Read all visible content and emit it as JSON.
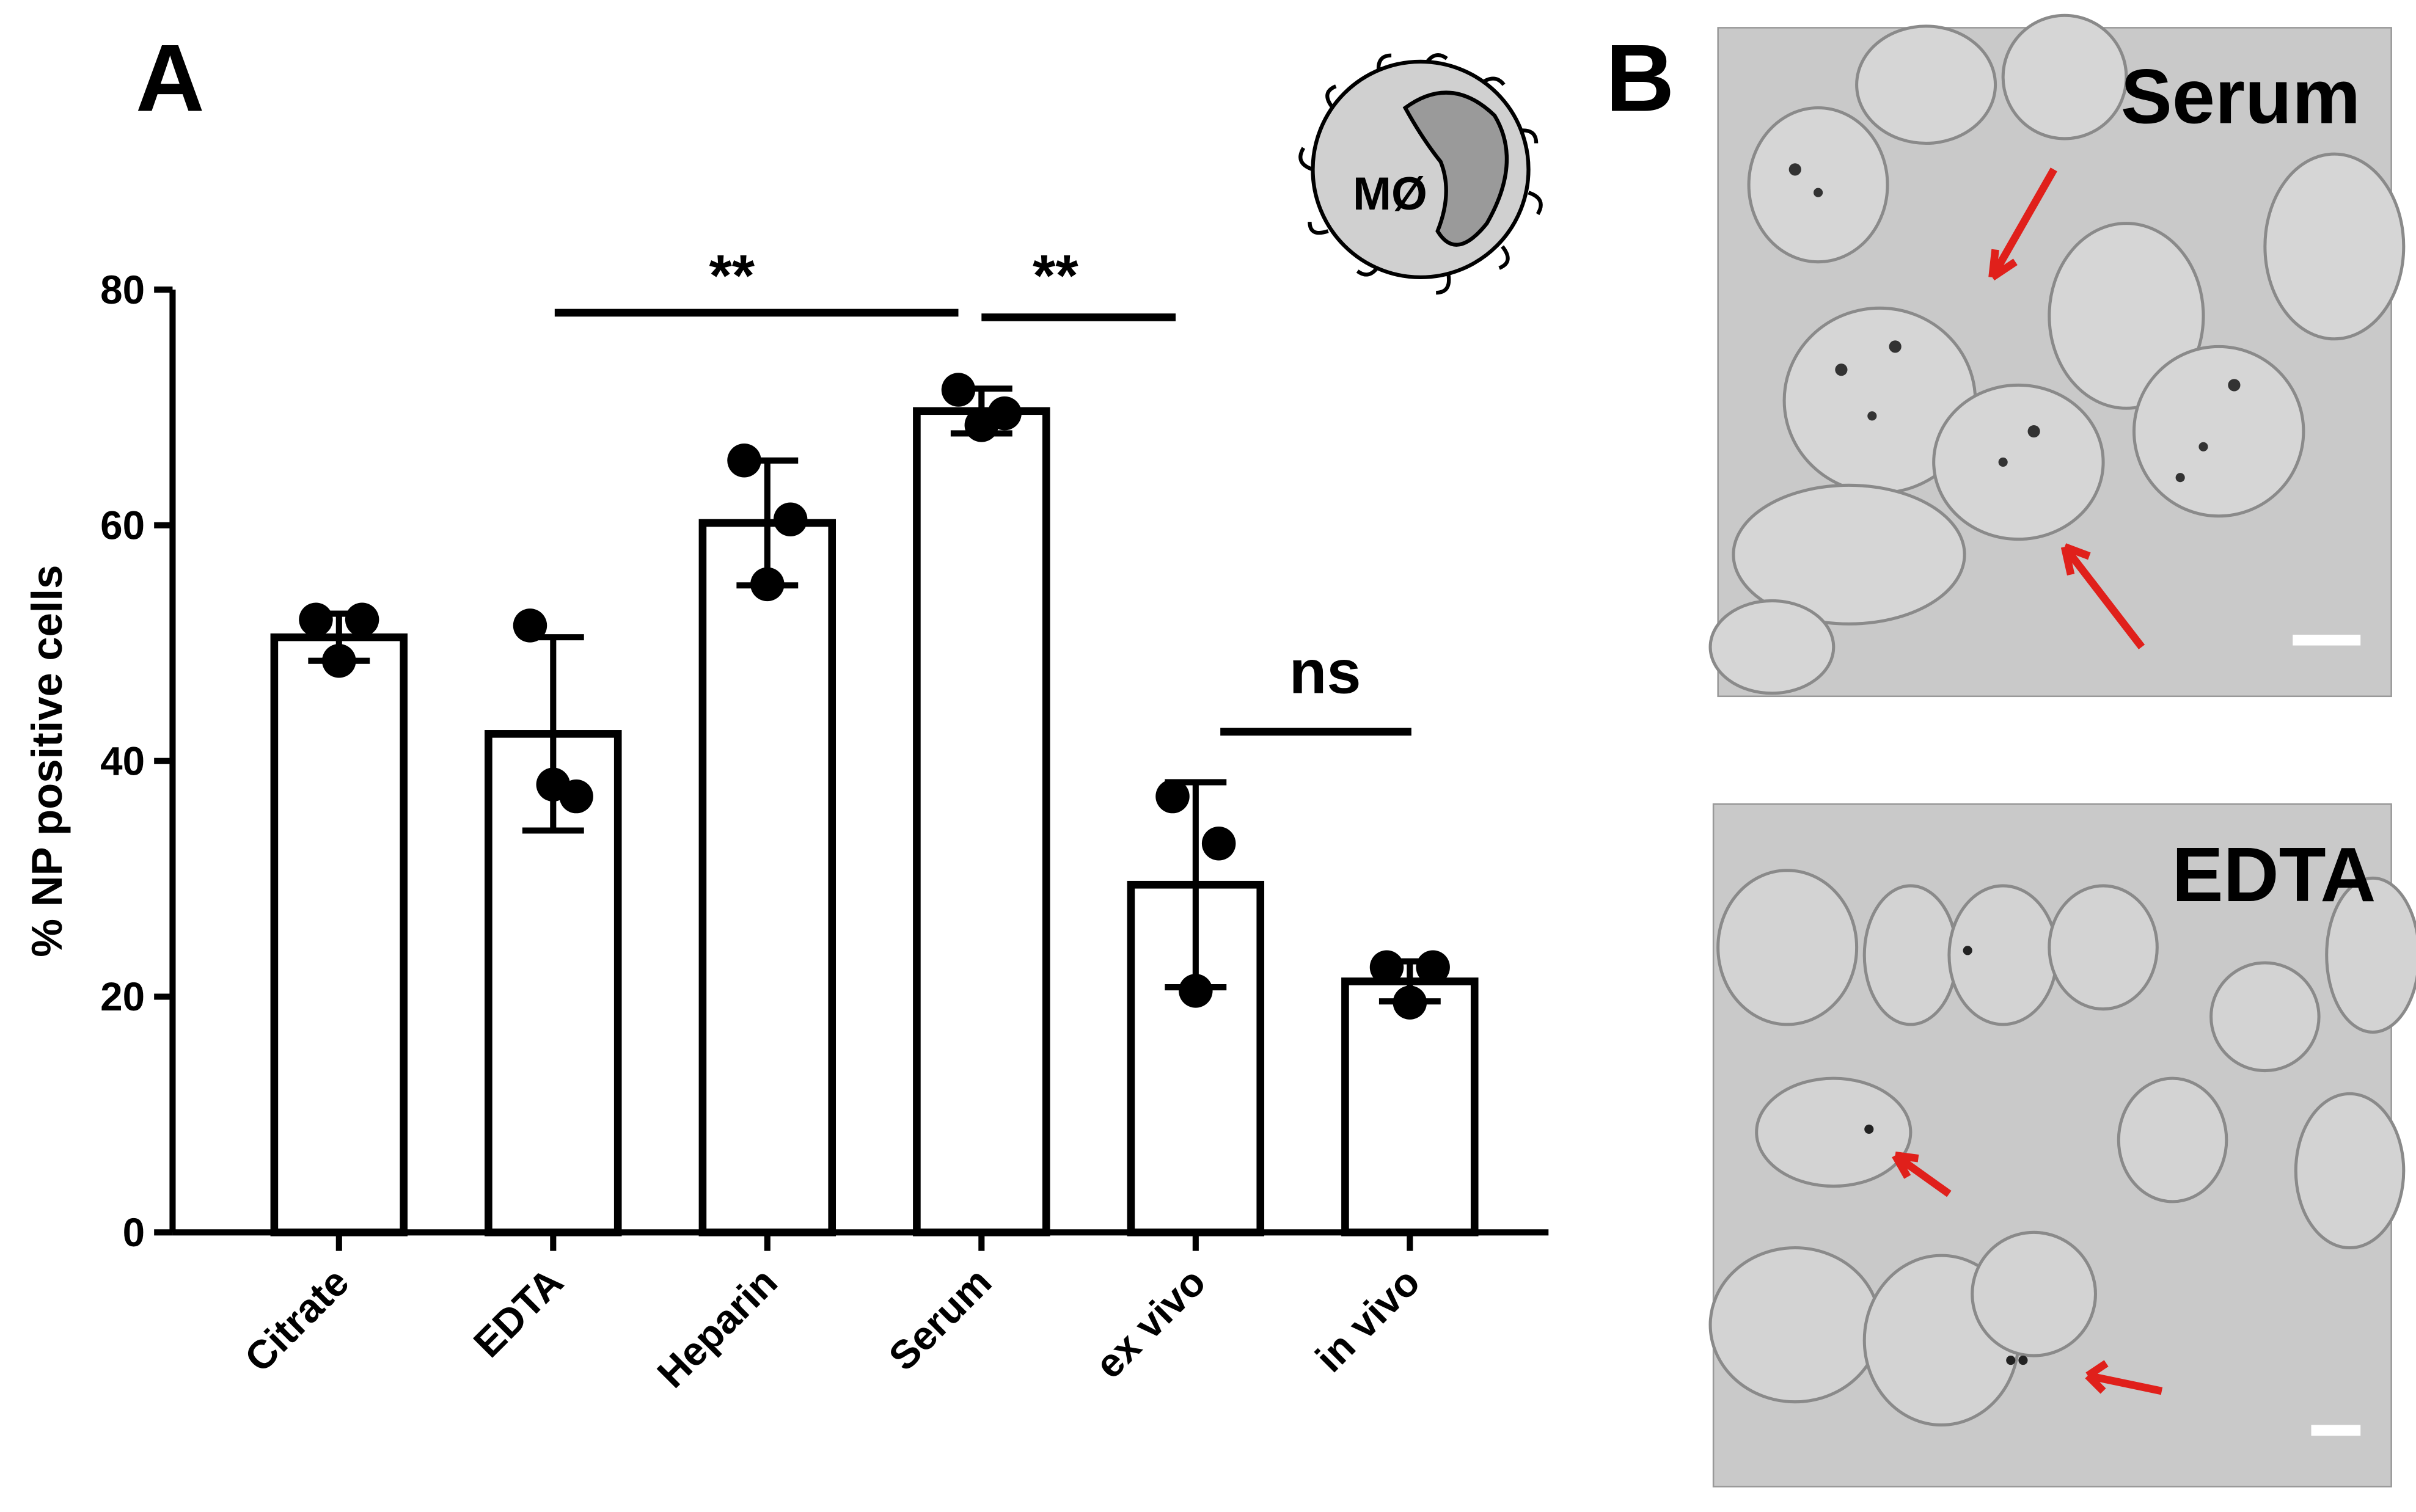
{
  "chart_data": {
    "type": "bar",
    "ylabel": "% NP positive cells",
    "categories": [
      "Citrate",
      "EDTA",
      "Heparin",
      "Serum",
      "ex vivo",
      "in vivo"
    ],
    "values": [
      50.5,
      42.3,
      60.2,
      69.7,
      29.5,
      21.3
    ],
    "errors": [
      2,
      8.2,
      5.3,
      1.9,
      8.7,
      1.7
    ],
    "points": [
      [
        52,
        52,
        48.5
      ],
      [
        51.5,
        37,
        38
      ],
      [
        65.5,
        60.5,
        55
      ],
      [
        71.5,
        69.5,
        68.5
      ],
      [
        37,
        33,
        20.5
      ],
      [
        22.5,
        22.5,
        19.5
      ]
    ],
    "color": "#ffffff",
    "ylim": [
      0,
      80
    ],
    "yticks": [
      0,
      20,
      40,
      60,
      80
    ],
    "annotations": [
      "**",
      "**",
      "ns"
    ]
  },
  "panels": {
    "a_label": "A",
    "b_label": "B",
    "icon_label": "MØ",
    "images": [
      {
        "label": "Serum"
      },
      {
        "label": "EDTA"
      }
    ]
  }
}
